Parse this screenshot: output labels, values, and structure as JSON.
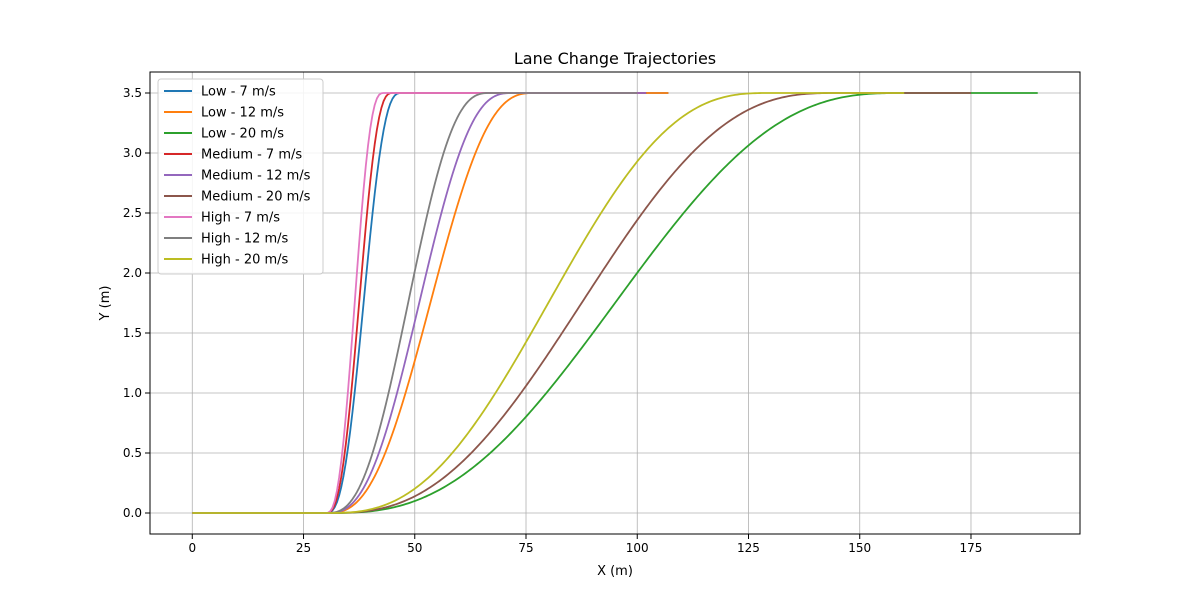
{
  "chart_data": {
    "type": "line",
    "title": "Lane Change Trajectories",
    "xlabel": "X (m)",
    "ylabel": "Y (m)",
    "xlim": [
      -9.5,
      199.5
    ],
    "ylim": [
      -0.175,
      3.675
    ],
    "x_ticks": [
      0,
      25,
      50,
      75,
      100,
      125,
      150,
      175
    ],
    "y_ticks": [
      0.0,
      0.5,
      1.0,
      1.5,
      2.0,
      2.5,
      3.0,
      3.5
    ],
    "x_tick_labels": [
      "0",
      "25",
      "50",
      "75",
      "100",
      "125",
      "150",
      "175"
    ],
    "y_tick_labels": [
      "0.0",
      "0.5",
      "1.0",
      "1.5",
      "2.0",
      "2.5",
      "3.0",
      "3.5"
    ],
    "grid": true,
    "legend_position": "upper-left",
    "series": [
      {
        "name": "Low - 7 m/s",
        "color": "#1f77b4",
        "start": 30,
        "end": 47,
        "total": 107
      },
      {
        "name": "Low - 12 m/s",
        "color": "#ff7f0e",
        "start": 30,
        "end": 77,
        "total": 107
      },
      {
        "name": "Low - 20 m/s",
        "color": "#2ca02c",
        "start": 30,
        "end": 160,
        "total": 190
      },
      {
        "name": "Medium - 7 m/s",
        "color": "#d62728",
        "start": 30,
        "end": 45,
        "total": 102
      },
      {
        "name": "Medium - 12 m/s",
        "color": "#9467bd",
        "start": 30,
        "end": 72,
        "total": 102
      },
      {
        "name": "Medium - 20 m/s",
        "color": "#8c564b",
        "start": 30,
        "end": 145,
        "total": 175
      },
      {
        "name": "High - 7 m/s",
        "color": "#e377c2",
        "start": 30,
        "end": 43,
        "total": 100
      },
      {
        "name": "High - 12 m/s",
        "color": "#7f7f7f",
        "start": 30,
        "end": 67,
        "total": 100
      },
      {
        "name": "High - 20 m/s",
        "color": "#bcbd22",
        "start": 30,
        "end": 130,
        "total": 160
      }
    ],
    "lane_width": 3.5
  }
}
